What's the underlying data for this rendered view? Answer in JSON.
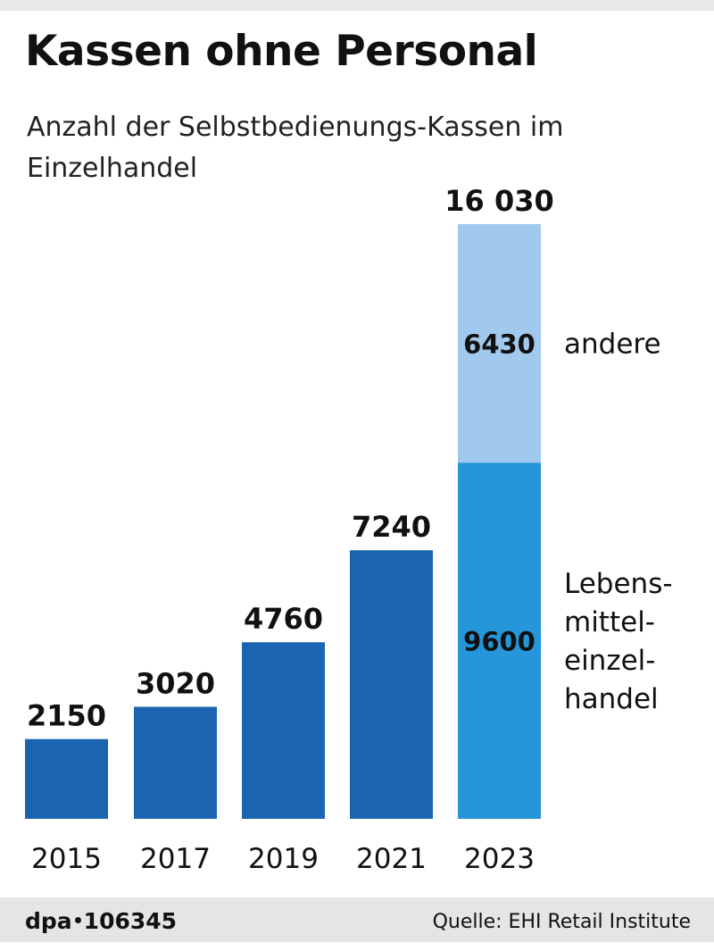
{
  "header": {
    "title": "Kassen ohne Personal",
    "subtitle": "Anzahl der Selbstbedienungs-Kassen im Einzelhandel"
  },
  "footer": {
    "brand": "dpa",
    "id": "106345",
    "source": "Quelle: EHI Retail Institute"
  },
  "colors": {
    "bar": "#1a64b1",
    "lebensmittel": "#2596d9",
    "andere": "#a1c9ed"
  },
  "chart_data": {
    "type": "bar",
    "title": "Kassen ohne Personal",
    "subtitle": "Anzahl der Selbstbedienungs-Kassen im Einzelhandel",
    "xlabel": "",
    "ylabel": "",
    "categories": [
      "2015",
      "2017",
      "2019",
      "2021",
      "2023"
    ],
    "values": [
      2150,
      3020,
      4760,
      7240,
      16030
    ],
    "value_labels": [
      "2150",
      "3020",
      "4760",
      "7240",
      "16 030"
    ],
    "ylim": [
      0,
      16030
    ],
    "grid": false,
    "stacked_breakdown": {
      "category": "2023",
      "segments": [
        {
          "name": "Lebens-mittel-einzel-handel",
          "name_lines": [
            "Lebens-",
            "mittel-",
            "einzel-",
            "handel"
          ],
          "value": 9600,
          "label": "9600"
        },
        {
          "name": "andere",
          "name_lines": [
            "andere"
          ],
          "value": 6430,
          "label": "6430"
        }
      ]
    }
  }
}
